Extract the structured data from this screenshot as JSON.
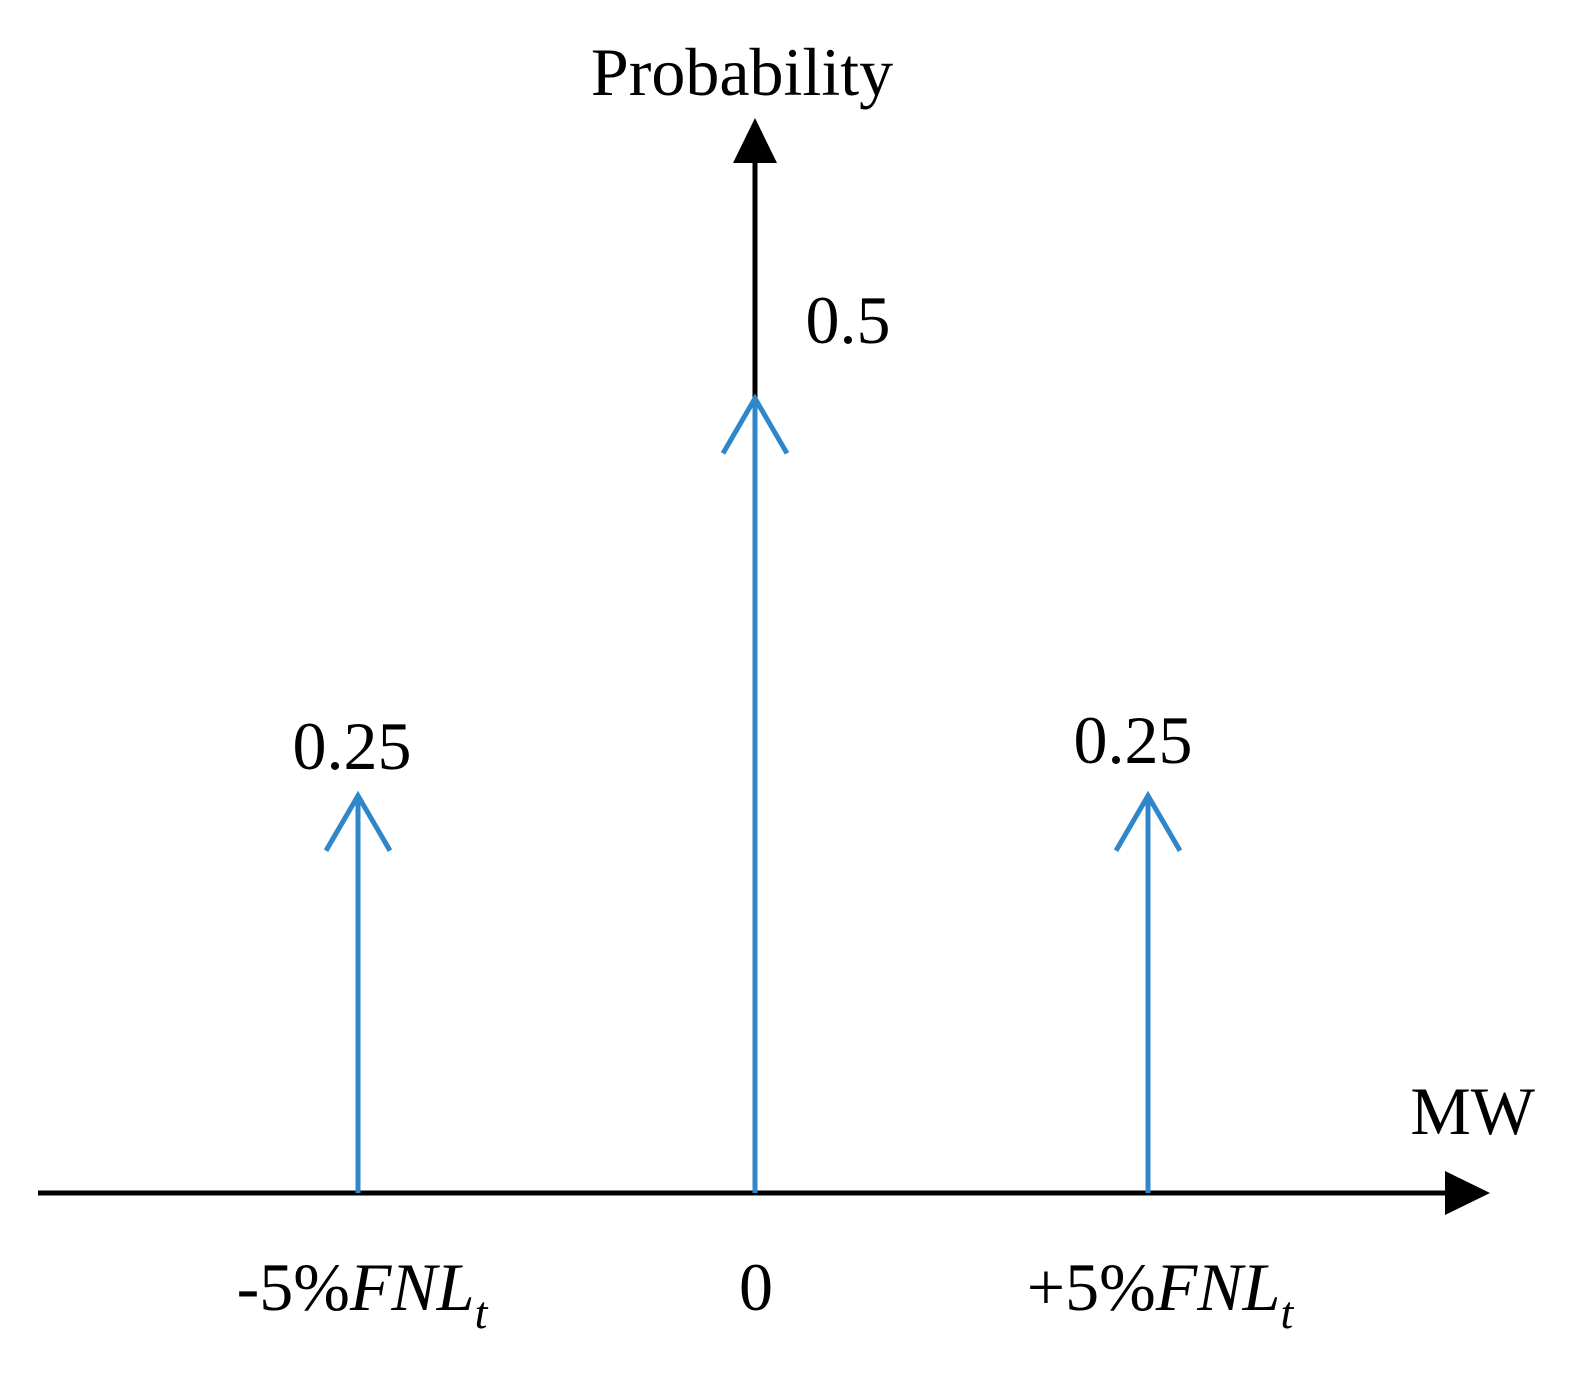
{
  "chart_data": {
    "type": "stem",
    "ylabel": "Probability",
    "xlabel": "MW",
    "ylim": [
      0,
      0.65
    ],
    "stem_color": "#2f86c8",
    "axis_color": "#000000",
    "points": [
      {
        "tick": {
          "prefix": "-5%",
          "main": "FNL",
          "sub": "t"
        },
        "value": 0.25,
        "value_label": "0.25"
      },
      {
        "tick": {
          "prefix": "",
          "main": "0",
          "sub": ""
        },
        "value": 0.5,
        "value_label": "0.5"
      },
      {
        "tick": {
          "prefix": "+5%",
          "main": "FNL",
          "sub": "t"
        },
        "value": 0.25,
        "value_label": "0.25"
      }
    ]
  }
}
